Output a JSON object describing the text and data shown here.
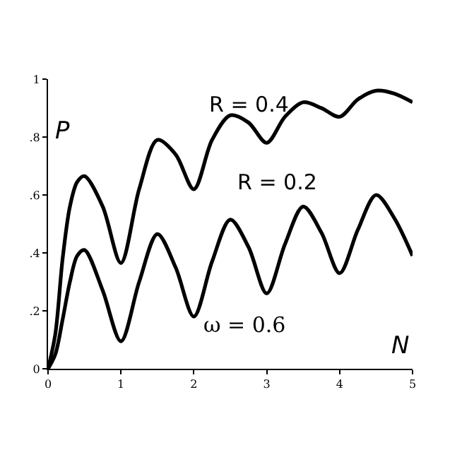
{
  "chart_data": {
    "type": "line",
    "xlabel": "N",
    "ylabel": "P",
    "annotations": [
      "ω = 0.6"
    ],
    "xlim": [
      0,
      5
    ],
    "xticks": [
      0,
      1,
      2,
      3,
      4,
      5
    ],
    "ylim": [
      0,
      1
    ],
    "yticks": [
      0,
      {
        "value": 0.2,
        "label": ".2"
      },
      {
        "value": 0.4,
        "label": ".4"
      },
      {
        "value": 0.6,
        "label": ".6"
      },
      {
        "value": 0.8,
        "label": ".8"
      },
      1
    ],
    "grid": false,
    "legend": false,
    "marker": "none",
    "line_style": "solid",
    "x": [
      0,
      0.1,
      0.2,
      0.3,
      0.4,
      0.5,
      0.75,
      1,
      1.25,
      1.5,
      1.75,
      2,
      2.25,
      2.5,
      2.75,
      3,
      3.25,
      3.5,
      3.75,
      4,
      4.25,
      4.5,
      4.75,
      5
    ],
    "series": [
      {
        "name": "R = 0.4",
        "color": "#000000",
        "values": [
          0,
          0.12,
          0.38,
          0.56,
          0.645,
          0.665,
          0.56,
          0.365,
          0.62,
          0.79,
          0.74,
          0.62,
          0.79,
          0.875,
          0.85,
          0.78,
          0.87,
          0.92,
          0.9,
          0.87,
          0.93,
          0.96,
          0.95,
          0.92
        ]
      },
      {
        "name": "R = 0.2",
        "color": "#000000",
        "values": [
          0,
          0.05,
          0.17,
          0.3,
          0.39,
          0.41,
          0.27,
          0.095,
          0.3,
          0.465,
          0.35,
          0.18,
          0.37,
          0.515,
          0.42,
          0.26,
          0.43,
          0.56,
          0.47,
          0.33,
          0.48,
          0.6,
          0.52,
          0.39
        ]
      }
    ]
  }
}
